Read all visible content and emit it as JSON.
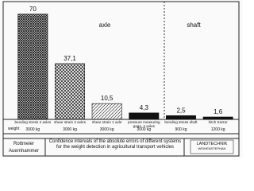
{
  "chart_data": {
    "type": "bar",
    "title": "Confidence intervals of the absolute errors of different systems for the weight detection in agricultural transport vehicles",
    "annotations": [
      "axle",
      "shaft"
    ],
    "categories": [
      "bending stress 2 axles",
      "shear strain 2 axles",
      "shear strain 1 axle",
      "pressure measuring gage, 2 axles",
      "bending stress shaft",
      "hitch tractor"
    ],
    "values": [
      70,
      37.1,
      10.5,
      4.3,
      2.5,
      1.6
    ],
    "value_labels": [
      "70",
      "37,1",
      "10,5",
      "4,3",
      "2,5",
      "1,6"
    ],
    "row_label": "weight",
    "weights": [
      "3000 kg",
      "3000 kg",
      "3000 kg",
      "3000 kg",
      "900 kg",
      "1200 kg"
    ],
    "authors": [
      "Rottmeier",
      "Auernhammer"
    ],
    "logo": [
      "LANDTECHNIK",
      "WEIHENSTEPHAN"
    ],
    "color": "#111111",
    "ylim": [
      0,
      72
    ]
  }
}
